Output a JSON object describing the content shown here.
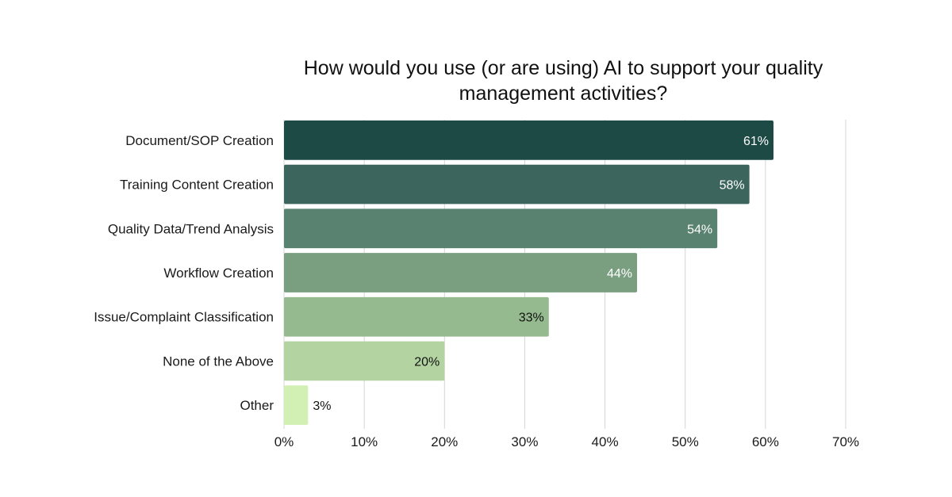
{
  "chart_data": {
    "type": "bar",
    "orientation": "horizontal",
    "title": "How would you use (or are using) AI to support your quality management activities?",
    "categories": [
      "Document/SOP Creation",
      "Training Content Creation",
      "Quality Data/Trend Analysis",
      "Workflow Creation",
      "Issue/Complaint Classification",
      "None of the Above",
      "Other"
    ],
    "values": [
      61,
      58,
      54,
      44,
      33,
      20,
      3
    ],
    "value_labels": [
      "61%",
      "58%",
      "54%",
      "44%",
      "33%",
      "20%",
      "3%"
    ],
    "colors": [
      "#1d4a45",
      "#3c665d",
      "#5a8270",
      "#7a9e80",
      "#96ba8f",
      "#b3d4a0",
      "#d2efb4"
    ],
    "label_colors": [
      "#ffffff",
      "#ffffff",
      "#ffffff",
      "#ffffff",
      "#111111",
      "#111111",
      "#111111"
    ],
    "xlim": [
      0,
      70
    ],
    "x_ticks": [
      0,
      10,
      20,
      30,
      40,
      50,
      60,
      70
    ],
    "x_tick_labels": [
      "0%",
      "10%",
      "20%",
      "30%",
      "40%",
      "50%",
      "60%",
      "70%"
    ],
    "grid": true,
    "gridline_color": "#d4d4d4",
    "xlabel": "",
    "ylabel": ""
  }
}
